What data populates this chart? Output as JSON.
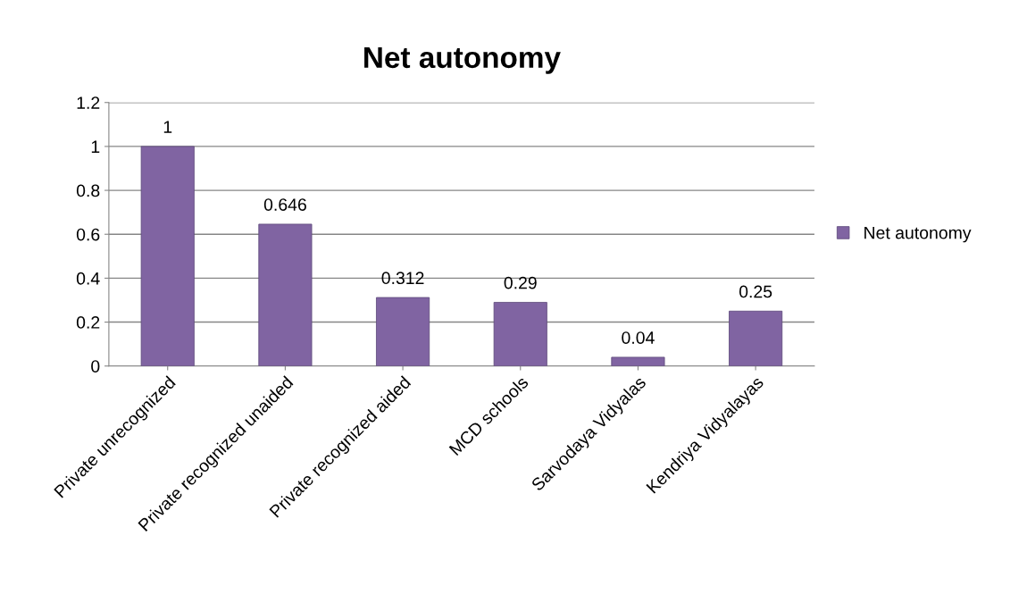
{
  "chart_data": {
    "type": "bar",
    "title": "Net autonomy",
    "categories": [
      "Private unrecognized",
      "Private recognized unaided",
      "Private recognized aided",
      "MCD schools",
      "Sarvodaya Vidyalas",
      "Kendriya Vidyalayas"
    ],
    "series": [
      {
        "name": "Net autonomy",
        "color": "#8064a2",
        "values": [
          1,
          0.646,
          0.312,
          0.29,
          0.04,
          0.25
        ]
      }
    ],
    "ylim": [
      0,
      1.2
    ],
    "yticks": [
      0,
      0.2,
      0.4,
      0.6,
      0.8,
      1,
      1.2
    ],
    "grid": "y",
    "legend": "right",
    "data_labels": true
  }
}
